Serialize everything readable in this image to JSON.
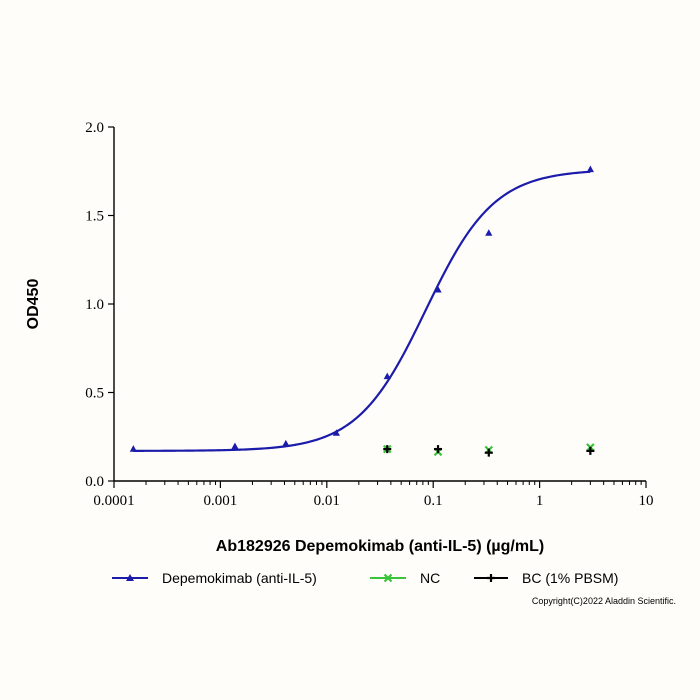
{
  "chart_data": {
    "type": "scatter",
    "title": "",
    "xlabel": "Ab182926 Depemokimab (anti-IL-5) (µg/mL)",
    "ylabel": "OD450",
    "xscale": "log",
    "xlim": [
      0.0001,
      10
    ],
    "ylim": [
      0.0,
      2.0
    ],
    "x_ticks": [
      0.0001,
      0.001,
      0.01,
      0.1,
      1,
      10
    ],
    "x_tick_labels": [
      "0.0001",
      "0.001",
      "0.01",
      "0.1",
      "1",
      "10"
    ],
    "y_ticks": [
      0.0,
      0.5,
      1.0,
      1.5,
      2.0
    ],
    "y_tick_labels": [
      "0.0",
      "0.5",
      "1.0",
      "1.5",
      "2.0"
    ],
    "grid": false,
    "legend_position": "bottom",
    "series": [
      {
        "name": "Depemokimab (anti-IL-5)",
        "color": "#1c1cab",
        "marker": "triangle",
        "fit": "sigmoid",
        "x": [
          0.000152,
          0.00137,
          0.00412,
          0.0123,
          0.037,
          0.111,
          0.333,
          3.0
        ],
        "y": [
          0.18,
          0.195,
          0.21,
          0.27,
          0.59,
          1.08,
          1.4,
          1.76
        ]
      },
      {
        "name": "NC",
        "color": "#3ac43a",
        "marker": "x",
        "x": [
          0.037,
          0.111,
          0.333,
          3.0
        ],
        "y": [
          0.18,
          0.165,
          0.175,
          0.19
        ]
      },
      {
        "name": "BC (1% PBSM)",
        "color": "#000000",
        "marker": "cross",
        "x": [
          0.037,
          0.111,
          0.333,
          3.0
        ],
        "y": [
          0.18,
          0.18,
          0.16,
          0.17
        ]
      }
    ]
  },
  "copyright": "Copyright(C)2022 Aladdin Scientific."
}
